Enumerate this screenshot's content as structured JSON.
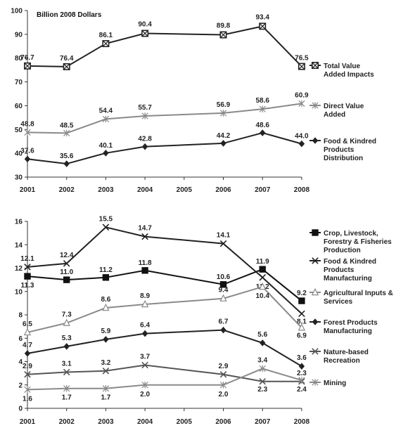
{
  "chart_data": [
    {
      "type": "line",
      "unit_label": "Billion 2008 Dollars",
      "categories": [
        "2001",
        "2002",
        "2003",
        "2004",
        "2005",
        "2006",
        "2007",
        "2008"
      ],
      "ylim": [
        30,
        100
      ],
      "yticks": [
        30,
        40,
        50,
        60,
        70,
        80,
        90,
        100
      ],
      "grid": false,
      "legend_position": "right",
      "series": [
        {
          "name": "Total Value Added Impacts",
          "legend_lines": [
            "Total Value",
            "Added Impacts"
          ],
          "color": "#222222",
          "marker": "square-x",
          "x": [
            "2001",
            "2002",
            "2003",
            "2004",
            "2006",
            "2007",
            "2008"
          ],
          "values": [
            76.7,
            76.4,
            86.1,
            90.4,
            89.8,
            93.4,
            76.5
          ],
          "labels": [
            "76.7",
            "76.4",
            "86.1",
            "90.4",
            "89.8",
            "93.4",
            "76.5"
          ]
        },
        {
          "name": "Direct Value Added",
          "legend_lines": [
            "Direct Value",
            "Added"
          ],
          "color": "#8a8a8a",
          "marker": "star",
          "x": [
            "2001",
            "2002",
            "2003",
            "2004",
            "2006",
            "2007",
            "2008"
          ],
          "values": [
            48.8,
            48.5,
            54.4,
            55.7,
            56.9,
            58.6,
            60.9
          ],
          "labels": [
            "48.8",
            "48.5",
            "54.4",
            "55.7",
            "56.9",
            "58.6",
            "60.9"
          ]
        },
        {
          "name": "Food & Kindred Products Distribution",
          "legend_lines": [
            "Food & Kindred",
            "Products",
            "Distribution"
          ],
          "color": "#222222",
          "marker": "diamond",
          "x": [
            "2001",
            "2002",
            "2003",
            "2004",
            "2006",
            "2007",
            "2008"
          ],
          "values": [
            37.6,
            35.6,
            40.1,
            42.8,
            44.2,
            48.6,
            44.0
          ],
          "labels": [
            "37.6",
            "35.6",
            "40.1",
            "42.8",
            "44.2",
            "48.6",
            "44.0"
          ]
        }
      ]
    },
    {
      "type": "line",
      "categories": [
        "2001",
        "2002",
        "2003",
        "2004",
        "2005",
        "2006",
        "2007",
        "2008"
      ],
      "ylim": [
        0,
        16
      ],
      "yticks": [
        0,
        2,
        4,
        6,
        8,
        10,
        12,
        14,
        16
      ],
      "grid": false,
      "legend_position": "right",
      "series": [
        {
          "name": "Crop, Livestock, Forestry & Fisheries Production",
          "legend_lines": [
            "Crop, Livestock,",
            "Forestry & Fisheries",
            "Production"
          ],
          "color": "#111111",
          "marker": "square",
          "x": [
            "2001",
            "2002",
            "2003",
            "2004",
            "2006",
            "2007",
            "2008"
          ],
          "values": [
            11.3,
            11.0,
            11.2,
            11.8,
            10.6,
            11.9,
            9.2
          ],
          "labels": [
            "11.3",
            "11.0",
            "11.2",
            "11.8",
            "10.6",
            "11.9",
            "9.2"
          ]
        },
        {
          "name": "Food & Kindred Products Manufacturing",
          "legend_lines": [
            "Food & Kindred",
            "Products",
            "Manufacturing"
          ],
          "color": "#222222",
          "marker": "x",
          "x": [
            "2001",
            "2002",
            "2003",
            "2004",
            "2006",
            "2007",
            "2008"
          ],
          "values": [
            12.1,
            12.4,
            15.5,
            14.7,
            14.1,
            11.2,
            8.1
          ],
          "labels": [
            "12.1",
            "12.4",
            "15.5",
            "14.7",
            "14.1",
            "11.2",
            "8.1"
          ]
        },
        {
          "name": "Agricultural Inputs & Services",
          "legend_lines": [
            "Agricultural Inputs &",
            "Services"
          ],
          "color": "#8a8a8a",
          "marker": "triangle",
          "x": [
            "2001",
            "2002",
            "2003",
            "2004",
            "2006",
            "2007",
            "2008"
          ],
          "values": [
            6.5,
            7.3,
            8.6,
            8.9,
            9.4,
            10.4,
            6.9
          ],
          "labels": [
            "6.5",
            "7.3",
            "8.6",
            "8.9",
            "9.4",
            "10.4",
            "6.9"
          ]
        },
        {
          "name": "Forest Products Manufacturing",
          "legend_lines": [
            "Forest Products",
            "Manufacturing"
          ],
          "color": "#222222",
          "marker": "diamond",
          "x": [
            "2001",
            "2002",
            "2003",
            "2004",
            "2006",
            "2007",
            "2008"
          ],
          "values": [
            4.7,
            5.3,
            5.9,
            6.4,
            6.7,
            5.6,
            3.6
          ],
          "labels": [
            "4.7",
            "5.3",
            "5.9",
            "6.4",
            "6.7",
            "5.6",
            "3.6"
          ]
        },
        {
          "name": "Nature-based Recreation",
          "legend_lines": [
            "Nature-based",
            "Recreation"
          ],
          "color": "#555555",
          "marker": "x",
          "x": [
            "2001",
            "2002",
            "2003",
            "2004",
            "2006",
            "2007",
            "2008"
          ],
          "values": [
            2.9,
            3.1,
            3.2,
            3.7,
            2.9,
            2.3,
            2.3
          ],
          "labels": [
            "2.9",
            "3.1",
            "3.2",
            "3.7",
            "2.9",
            "2.3",
            "2.3"
          ]
        },
        {
          "name": "Mining",
          "legend_lines": [
            "Mining"
          ],
          "color": "#8a8a8a",
          "marker": "star",
          "x": [
            "2001",
            "2002",
            "2003",
            "2004",
            "2006",
            "2007",
            "2008"
          ],
          "values": [
            1.6,
            1.7,
            1.7,
            2.0,
            2.0,
            3.4,
            2.4
          ],
          "labels": [
            "1.6",
            "1.7",
            "1.7",
            "2.0",
            "2.0",
            "3.4",
            "2.4"
          ]
        }
      ]
    }
  ]
}
